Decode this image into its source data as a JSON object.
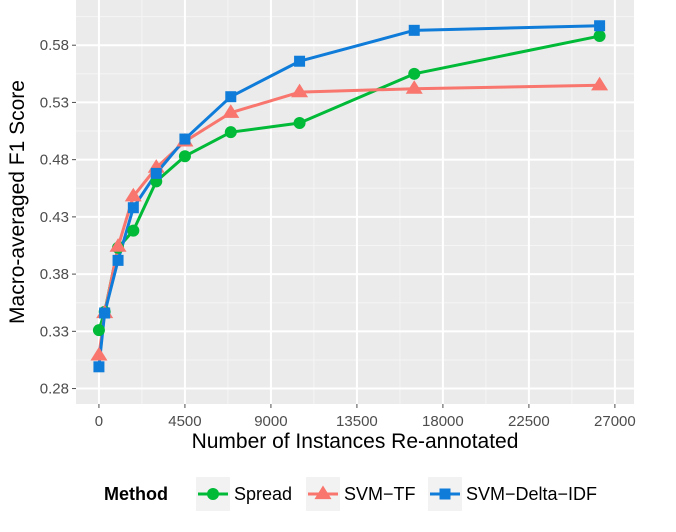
{
  "chart_data": {
    "type": "line",
    "xlabel": "Number of Instances Re-annotated",
    "ylabel": "Macro-averaged F1 Score",
    "xlim": [
      -1200,
      28000
    ],
    "ylim": [
      0.2665,
      0.6195
    ],
    "x_ticks": [
      0,
      4500,
      9000,
      13500,
      18000,
      22500,
      27000
    ],
    "x_tick_labels": [
      "0",
      "4500",
      "9000",
      "13500",
      "18000",
      "22500",
      "27000"
    ],
    "y_ticks": [
      0.28,
      0.33,
      0.38,
      0.43,
      0.48,
      0.53,
      0.58
    ],
    "y_tick_labels": [
      "0.28",
      "0.33",
      "0.38",
      "0.43",
      "0.48",
      "0.53",
      "0.58"
    ],
    "grid": true,
    "legend_title": "Method",
    "legend_position": "bottom",
    "series": [
      {
        "name": "Spread",
        "color": "#00BA38",
        "marker": "circle",
        "x": [
          0,
          300,
          1000,
          1800,
          3000,
          4500,
          6900,
          10500,
          16500,
          26200
        ],
        "y": [
          0.331,
          0.347,
          0.403,
          0.418,
          0.461,
          0.483,
          0.504,
          0.512,
          0.555,
          0.588
        ]
      },
      {
        "name": "SVM−TF",
        "color": "#F8766D",
        "marker": "triangle",
        "x": [
          0,
          300,
          1000,
          1800,
          3000,
          4500,
          6900,
          10500,
          16500,
          26200
        ],
        "y": [
          0.309,
          0.346,
          0.404,
          0.448,
          0.473,
          0.496,
          0.521,
          0.539,
          0.542,
          0.545
        ]
      },
      {
        "name": "SVM−Delta−IDF",
        "color": "#0F7CD9",
        "marker": "square",
        "x": [
          0,
          300,
          1000,
          1800,
          3000,
          4500,
          6900,
          10500,
          16500,
          26200
        ],
        "y": [
          0.299,
          0.346,
          0.392,
          0.438,
          0.468,
          0.498,
          0.535,
          0.566,
          0.593,
          0.597
        ]
      }
    ]
  }
}
